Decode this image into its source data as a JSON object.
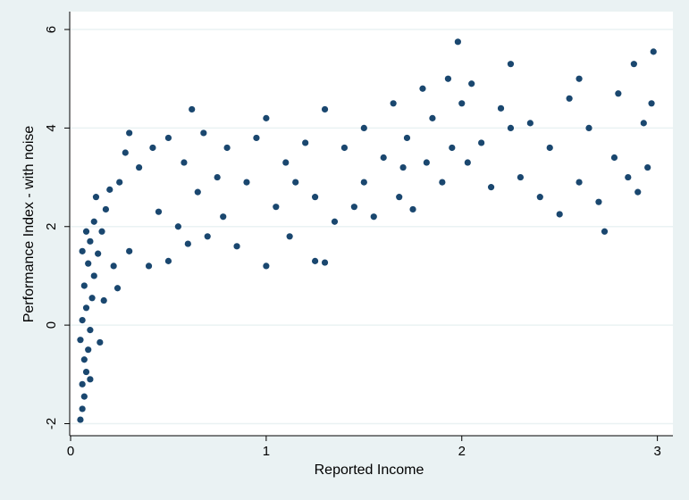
{
  "chart_data": {
    "type": "scatter",
    "xlabel": "Reported Income",
    "ylabel": "Performance Index - with noise",
    "xlim": [
      0,
      3.02
    ],
    "ylim": [
      -2.1,
      6.2
    ],
    "x_ticks": [
      {
        "value": 0,
        "label": "0"
      },
      {
        "value": 1,
        "label": "1"
      },
      {
        "value": 2,
        "label": "2"
      },
      {
        "value": 3,
        "label": "3"
      }
    ],
    "y_ticks": [
      {
        "value": -2,
        "label": "-2"
      },
      {
        "value": 0,
        "label": "0"
      },
      {
        "value": 2,
        "label": "2"
      },
      {
        "value": 4,
        "label": "4"
      },
      {
        "value": 6,
        "label": "6"
      }
    ],
    "grid": true,
    "legend": "none",
    "colors": {
      "marker": "#1a476f",
      "plot_background": "#ffffff",
      "outer_background": "#eaf2f3",
      "grid": "#eaf2f3"
    },
    "points": [
      [
        0.05,
        -1.92
      ],
      [
        0.06,
        -1.7
      ],
      [
        0.07,
        -1.45
      ],
      [
        0.06,
        -1.2
      ],
      [
        0.08,
        -0.95
      ],
      [
        0.07,
        -0.7
      ],
      [
        0.09,
        -0.5
      ],
      [
        0.05,
        -0.3
      ],
      [
        0.1,
        -0.1
      ],
      [
        0.06,
        0.1
      ],
      [
        0.08,
        0.35
      ],
      [
        0.11,
        0.55
      ],
      [
        0.07,
        0.8
      ],
      [
        0.12,
        1.0
      ],
      [
        0.09,
        1.25
      ],
      [
        0.14,
        1.45
      ],
      [
        0.1,
        1.7
      ],
      [
        0.16,
        1.9
      ],
      [
        0.12,
        2.1
      ],
      [
        0.18,
        2.35
      ],
      [
        0.06,
        1.5
      ],
      [
        0.08,
        1.9
      ],
      [
        0.13,
        2.6
      ],
      [
        0.2,
        2.75
      ],
      [
        0.15,
        -0.35
      ],
      [
        0.1,
        -1.1
      ],
      [
        0.17,
        0.5
      ],
      [
        0.22,
        1.2
      ],
      [
        0.25,
        2.9
      ],
      [
        0.28,
        3.5
      ],
      [
        0.3,
        3.9
      ],
      [
        0.24,
        0.75
      ],
      [
        0.3,
        1.5
      ],
      [
        0.35,
        3.2
      ],
      [
        0.4,
        1.2
      ],
      [
        0.42,
        3.6
      ],
      [
        0.45,
        2.3
      ],
      [
        0.5,
        1.3
      ],
      [
        0.5,
        3.8
      ],
      [
        0.55,
        2.0
      ],
      [
        0.58,
        3.3
      ],
      [
        0.62,
        4.38
      ],
      [
        0.6,
        1.65
      ],
      [
        0.65,
        2.7
      ],
      [
        0.68,
        3.9
      ],
      [
        0.7,
        1.8
      ],
      [
        0.75,
        3.0
      ],
      [
        0.78,
        2.2
      ],
      [
        0.8,
        3.6
      ],
      [
        0.85,
        1.6
      ],
      [
        0.9,
        2.9
      ],
      [
        0.95,
        3.8
      ],
      [
        1.0,
        1.2
      ],
      [
        1.0,
        4.2
      ],
      [
        1.05,
        2.4
      ],
      [
        1.1,
        3.3
      ],
      [
        1.12,
        1.8
      ],
      [
        1.15,
        2.9
      ],
      [
        1.2,
        3.7
      ],
      [
        1.25,
        1.3
      ],
      [
        1.25,
        2.6
      ],
      [
        1.3,
        4.38
      ],
      [
        1.3,
        1.27
      ],
      [
        1.35,
        2.1
      ],
      [
        1.4,
        3.6
      ],
      [
        1.45,
        2.4
      ],
      [
        1.5,
        4.0
      ],
      [
        1.5,
        2.9
      ],
      [
        1.55,
        2.2
      ],
      [
        1.6,
        3.4
      ],
      [
        1.65,
        4.5
      ],
      [
        1.68,
        2.6
      ],
      [
        1.72,
        3.8
      ],
      [
        1.75,
        2.35
      ],
      [
        1.8,
        4.8
      ],
      [
        1.82,
        3.3
      ],
      [
        1.85,
        4.2
      ],
      [
        1.9,
        2.9
      ],
      [
        1.93,
        5.0
      ],
      [
        1.95,
        3.6
      ],
      [
        1.98,
        5.75
      ],
      [
        2.0,
        4.5
      ],
      [
        2.03,
        3.3
      ],
      [
        2.05,
        4.9
      ],
      [
        2.1,
        3.7
      ],
      [
        2.15,
        2.8
      ],
      [
        2.2,
        4.4
      ],
      [
        2.25,
        5.3
      ],
      [
        2.3,
        3.0
      ],
      [
        2.35,
        4.1
      ],
      [
        2.4,
        2.6
      ],
      [
        2.45,
        3.6
      ],
      [
        2.5,
        2.25
      ],
      [
        2.55,
        4.6
      ],
      [
        2.6,
        2.9
      ],
      [
        2.65,
        4.0
      ],
      [
        2.7,
        2.5
      ],
      [
        2.73,
        1.9
      ],
      [
        2.78,
        3.4
      ],
      [
        2.8,
        4.7
      ],
      [
        2.85,
        3.0
      ],
      [
        2.88,
        5.3
      ],
      [
        2.9,
        2.7
      ],
      [
        2.93,
        4.1
      ],
      [
        2.95,
        3.2
      ],
      [
        2.98,
        5.55
      ],
      [
        2.97,
        4.5
      ],
      [
        2.6,
        5.0
      ],
      [
        2.25,
        4.0
      ],
      [
        1.7,
        3.2
      ]
    ]
  }
}
